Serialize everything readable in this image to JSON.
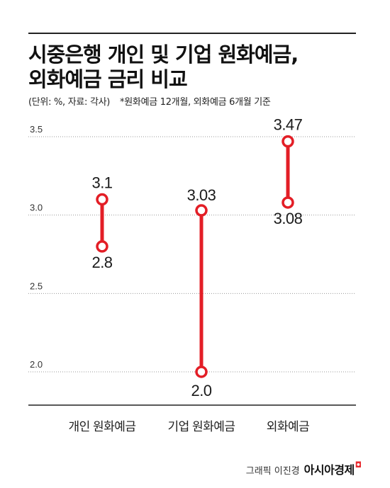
{
  "title_line1": "시중은행 개인 및 기업 원화예금,",
  "title_line2": "외화예금 금리 비교",
  "unit_note": "(단위: %, 자료: 각사)",
  "basis_note": "*원화예금 12개월, 외화예금 6개월 기준",
  "credit": {
    "byline": "그래픽 이진경",
    "brand": "아시아경제",
    "brand_mark": "ㅁ"
  },
  "chart_data": {
    "type": "dumbbell",
    "title": "시중은행 개인 및 기업 원화예금, 외화예금 금리 비교",
    "categories": [
      "개인 원화예금",
      "기업 원화예금",
      "외화예금"
    ],
    "series": [
      {
        "values": [
          3.1,
          3.03,
          3.47
        ]
      },
      {
        "values": [
          2.8,
          2.0,
          3.08
        ]
      }
    ],
    "high_labels": [
      "3.1",
      "3.03",
      "3.47"
    ],
    "low_labels": [
      "2.8",
      "2.0",
      "3.08"
    ],
    "yticks": [
      "3.5",
      "3.0",
      "2.5",
      "2.0"
    ],
    "ytick_values": [
      3.5,
      3.0,
      2.5,
      2.0
    ],
    "ylim": [
      1.95,
      3.5
    ],
    "grid": true,
    "colors": {
      "line": "#e31e26",
      "marker_fill": "#ffffff",
      "grid": "#9a9a9a",
      "axis": "#222222"
    }
  }
}
